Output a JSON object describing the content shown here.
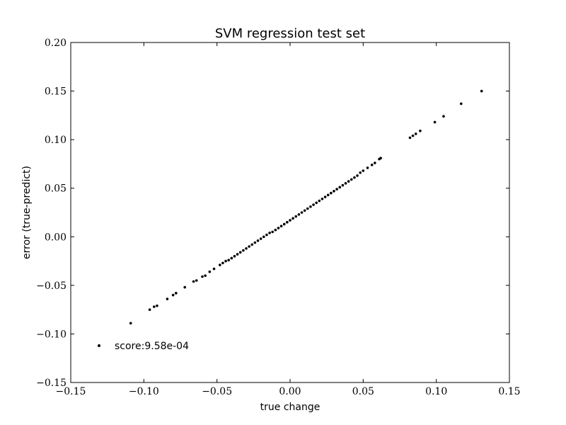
{
  "chart_data": {
    "type": "scatter",
    "title": "SVM regression test set",
    "xlabel": "true change",
    "ylabel": "error (true-predict)",
    "xlim": [
      -0.15,
      0.15
    ],
    "ylim": [
      -0.15,
      0.2
    ],
    "x_ticks": [
      -0.15,
      -0.1,
      -0.05,
      0.0,
      0.05,
      0.1,
      0.15
    ],
    "x_tick_labels": [
      "−0.15",
      "−0.10",
      "−0.05",
      "0.00",
      "0.05",
      "0.10",
      "0.15"
    ],
    "y_ticks": [
      -0.15,
      -0.1,
      -0.05,
      0.0,
      0.05,
      0.1,
      0.15,
      0.2
    ],
    "y_tick_labels": [
      "−0.15",
      "−0.10",
      "−0.05",
      "0.00",
      "0.05",
      "0.10",
      "0.15",
      "0.20"
    ],
    "grid": false,
    "legend_position": "lower-left",
    "series": [
      {
        "name": "score:9.58e-04",
        "color": "#000000",
        "points": [
          [
            -0.109,
            -0.089
          ],
          [
            -0.096,
            -0.075
          ],
          [
            -0.093,
            -0.072
          ],
          [
            -0.091,
            -0.071
          ],
          [
            -0.084,
            -0.064
          ],
          [
            -0.08,
            -0.06
          ],
          [
            -0.078,
            -0.058
          ],
          [
            -0.072,
            -0.052
          ],
          [
            -0.066,
            -0.046
          ],
          [
            -0.064,
            -0.045
          ],
          [
            -0.06,
            -0.041
          ],
          [
            -0.058,
            -0.04
          ],
          [
            -0.055,
            -0.036
          ],
          [
            -0.052,
            -0.033
          ],
          [
            -0.048,
            -0.029
          ],
          [
            -0.046,
            -0.027
          ],
          [
            -0.044,
            -0.025
          ],
          [
            -0.042,
            -0.024
          ],
          [
            -0.04,
            -0.022
          ],
          [
            -0.038,
            -0.02
          ],
          [
            -0.036,
            -0.018
          ],
          [
            -0.034,
            -0.016
          ],
          [
            -0.032,
            -0.014
          ],
          [
            -0.03,
            -0.012
          ],
          [
            -0.028,
            -0.01
          ],
          [
            -0.026,
            -0.008
          ],
          [
            -0.024,
            -0.006
          ],
          [
            -0.022,
            -0.004
          ],
          [
            -0.02,
            -0.002
          ],
          [
            -0.018,
            0.0
          ],
          [
            -0.016,
            0.002
          ],
          [
            -0.014,
            0.004
          ],
          [
            -0.012,
            0.005
          ],
          [
            -0.01,
            0.007
          ],
          [
            -0.008,
            0.009
          ],
          [
            -0.006,
            0.011
          ],
          [
            -0.004,
            0.013
          ],
          [
            -0.002,
            0.015
          ],
          [
            0.0,
            0.017
          ],
          [
            0.002,
            0.019
          ],
          [
            0.004,
            0.021
          ],
          [
            0.006,
            0.023
          ],
          [
            0.008,
            0.025
          ],
          [
            0.01,
            0.027
          ],
          [
            0.012,
            0.029
          ],
          [
            0.014,
            0.031
          ],
          [
            0.016,
            0.033
          ],
          [
            0.018,
            0.035
          ],
          [
            0.02,
            0.037
          ],
          [
            0.022,
            0.039
          ],
          [
            0.024,
            0.041
          ],
          [
            0.026,
            0.043
          ],
          [
            0.028,
            0.045
          ],
          [
            0.03,
            0.047
          ],
          [
            0.032,
            0.049
          ],
          [
            0.034,
            0.051
          ],
          [
            0.036,
            0.053
          ],
          [
            0.038,
            0.055
          ],
          [
            0.04,
            0.057
          ],
          [
            0.042,
            0.059
          ],
          [
            0.044,
            0.061
          ],
          [
            0.046,
            0.063
          ],
          [
            0.048,
            0.066
          ],
          [
            0.05,
            0.068
          ],
          [
            0.053,
            0.071
          ],
          [
            0.056,
            0.074
          ],
          [
            0.058,
            0.076
          ],
          [
            0.061,
            0.08
          ],
          [
            0.062,
            0.081
          ],
          [
            0.082,
            0.102
          ],
          [
            0.084,
            0.104
          ],
          [
            0.086,
            0.106
          ],
          [
            0.089,
            0.109
          ],
          [
            0.099,
            0.118
          ],
          [
            0.105,
            0.124
          ],
          [
            0.117,
            0.137
          ],
          [
            0.131,
            0.15
          ]
        ]
      }
    ]
  }
}
